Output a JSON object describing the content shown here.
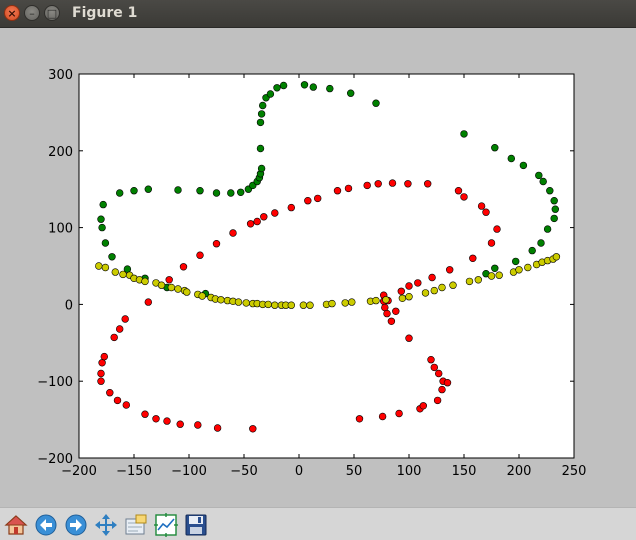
{
  "window": {
    "title": "Figure 1",
    "close_glyph": "×",
    "minimize_glyph": "–",
    "maximize_glyph": "□"
  },
  "toolbar": {
    "items": [
      {
        "name": "home-button",
        "icon": "home-icon"
      },
      {
        "name": "back-button",
        "icon": "arrow-left-icon"
      },
      {
        "name": "forward-button",
        "icon": "arrow-right-icon"
      },
      {
        "name": "pan-button",
        "icon": "move-arrows-icon"
      },
      {
        "name": "zoom-button",
        "icon": "zoom-rect-icon"
      },
      {
        "name": "subplots-button",
        "icon": "subplots-icon"
      },
      {
        "name": "save-button",
        "icon": "floppy-disk-icon"
      }
    ]
  },
  "chart_data": {
    "type": "scatter",
    "xlim": [
      -200,
      250
    ],
    "ylim": [
      -200,
      300
    ],
    "x_ticks": [
      -200,
      -150,
      -100,
      -50,
      0,
      50,
      100,
      150,
      200,
      250
    ],
    "y_ticks": [
      -200,
      -100,
      0,
      100,
      200,
      300
    ],
    "grid": false,
    "series": [
      {
        "color": "#008000",
        "points": [
          [
            -180,
            111
          ],
          [
            -179,
            100
          ],
          [
            -178,
            130
          ],
          [
            -176,
            80
          ],
          [
            -170,
            62
          ],
          [
            -163,
            145
          ],
          [
            -156,
            46
          ],
          [
            -150,
            148
          ],
          [
            -140,
            34
          ],
          [
            -137,
            150
          ],
          [
            -120,
            22
          ],
          [
            -110,
            149
          ],
          [
            -90,
            148
          ],
          [
            -85,
            14
          ],
          [
            -75,
            145
          ],
          [
            -62,
            145
          ],
          [
            -53,
            146
          ],
          [
            -46,
            150
          ],
          [
            -42,
            155
          ],
          [
            -38,
            160
          ],
          [
            -36,
            165
          ],
          [
            -35,
            170
          ],
          [
            -34,
            177
          ],
          [
            -35,
            203
          ],
          [
            -35,
            237
          ],
          [
            -34,
            248
          ],
          [
            -33,
            259
          ],
          [
            -30,
            269
          ],
          [
            -26,
            274
          ],
          [
            -20,
            282
          ],
          [
            -14,
            285
          ],
          [
            5,
            286
          ],
          [
            13,
            283
          ],
          [
            28,
            281
          ],
          [
            47,
            275
          ],
          [
            70,
            262
          ],
          [
            150,
            222
          ],
          [
            178,
            204
          ],
          [
            193,
            190
          ],
          [
            204,
            181
          ],
          [
            218,
            168
          ],
          [
            222,
            160
          ],
          [
            228,
            148
          ],
          [
            232,
            135
          ],
          [
            233,
            124
          ],
          [
            232,
            112
          ],
          [
            226,
            98
          ],
          [
            220,
            80
          ],
          [
            212,
            70
          ],
          [
            197,
            56
          ],
          [
            178,
            47
          ],
          [
            170,
            40
          ]
        ]
      },
      {
        "color": "#ff0000",
        "points": [
          [
            -180,
            -100
          ],
          [
            -180,
            -90
          ],
          [
            -179,
            -76
          ],
          [
            -177,
            -68
          ],
          [
            -172,
            -115
          ],
          [
            -168,
            -43
          ],
          [
            -165,
            -125
          ],
          [
            -163,
            -32
          ],
          [
            -158,
            -19
          ],
          [
            -157,
            -131
          ],
          [
            -140,
            -143
          ],
          [
            -137,
            3
          ],
          [
            -130,
            -149
          ],
          [
            -120,
            -152
          ],
          [
            -118,
            32
          ],
          [
            -108,
            -156
          ],
          [
            -105,
            49
          ],
          [
            -92,
            -157
          ],
          [
            -90,
            64
          ],
          [
            -75,
            79
          ],
          [
            -74,
            -161
          ],
          [
            -60,
            93
          ],
          [
            -44,
            105
          ],
          [
            -42,
            -162
          ],
          [
            -38,
            108
          ],
          [
            -32,
            114
          ],
          [
            -22,
            119
          ],
          [
            -7,
            126
          ],
          [
            8,
            135
          ],
          [
            17,
            138
          ],
          [
            35,
            148
          ],
          [
            45,
            151
          ],
          [
            55,
            -149
          ],
          [
            62,
            155
          ],
          [
            72,
            157
          ],
          [
            76,
            -146
          ],
          [
            77,
            12
          ],
          [
            77,
            4
          ],
          [
            78,
            -4
          ],
          [
            80,
            -12
          ],
          [
            81,
            5
          ],
          [
            84,
            -22
          ],
          [
            85,
            158
          ],
          [
            88,
            -9
          ],
          [
            91,
            -142
          ],
          [
            93,
            17
          ],
          [
            99,
            157
          ],
          [
            100,
            -44
          ],
          [
            100,
            24
          ],
          [
            108,
            28
          ],
          [
            110,
            -136
          ],
          [
            113,
            -132
          ],
          [
            117,
            157
          ],
          [
            120,
            -72
          ],
          [
            121,
            35
          ],
          [
            123,
            -82
          ],
          [
            126,
            -125
          ],
          [
            127,
            -90
          ],
          [
            130,
            -111
          ],
          [
            131,
            -100
          ],
          [
            135,
            -102
          ],
          [
            137,
            45
          ],
          [
            145,
            148
          ],
          [
            150,
            140
          ],
          [
            158,
            60
          ],
          [
            166,
            128
          ],
          [
            170,
            120
          ],
          [
            175,
            80
          ],
          [
            180,
            98
          ]
        ]
      },
      {
        "color": "#cccc00",
        "points": [
          [
            -182,
            50
          ],
          [
            -176,
            48
          ],
          [
            -167,
            42
          ],
          [
            -160,
            39
          ],
          [
            -154,
            38
          ],
          [
            -150,
            34
          ],
          [
            -145,
            32
          ],
          [
            -140,
            30
          ],
          [
            -130,
            28
          ],
          [
            -125,
            25
          ],
          [
            -116,
            22
          ],
          [
            -110,
            20
          ],
          [
            -104,
            18
          ],
          [
            -102,
            16
          ],
          [
            -92,
            13
          ],
          [
            -88,
            11
          ],
          [
            -80,
            9
          ],
          [
            -76,
            7
          ],
          [
            -71,
            6
          ],
          [
            -65,
            5
          ],
          [
            -60,
            4
          ],
          [
            -55,
            3
          ],
          [
            -48,
            2
          ],
          [
            -42,
            1
          ],
          [
            -38,
            1
          ],
          [
            -33,
            0
          ],
          [
            -28,
            0
          ],
          [
            -22,
            -1
          ],
          [
            -16,
            -1
          ],
          [
            -12,
            -1
          ],
          [
            -7,
            -1
          ],
          [
            4,
            -1
          ],
          [
            10,
            -1
          ],
          [
            25,
            0
          ],
          [
            30,
            1
          ],
          [
            42,
            2
          ],
          [
            48,
            3
          ],
          [
            65,
            4
          ],
          [
            70,
            5
          ],
          [
            79,
            6
          ],
          [
            94,
            8
          ],
          [
            100,
            10
          ],
          [
            115,
            15
          ],
          [
            123,
            18
          ],
          [
            130,
            22
          ],
          [
            140,
            25
          ],
          [
            155,
            30
          ],
          [
            163,
            32
          ],
          [
            175,
            37
          ],
          [
            182,
            38
          ],
          [
            195,
            42
          ],
          [
            200,
            45
          ],
          [
            208,
            48
          ],
          [
            216,
            52
          ],
          [
            221,
            55
          ],
          [
            226,
            57
          ],
          [
            231,
            59
          ],
          [
            234,
            62
          ]
        ]
      }
    ]
  }
}
